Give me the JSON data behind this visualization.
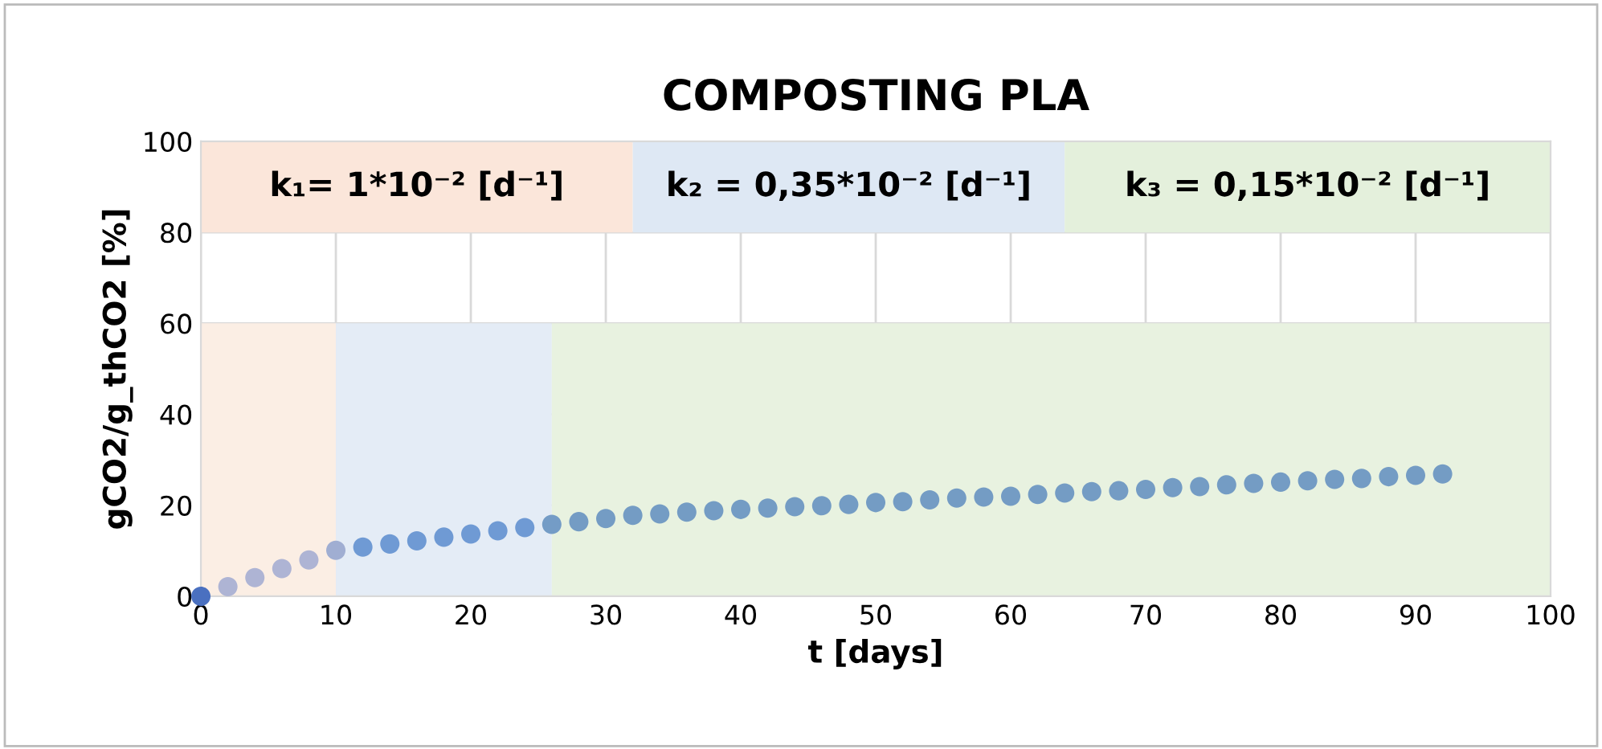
{
  "chart_data": {
    "type": "scatter",
    "title": "COMPOSTING PLA",
    "xlabel": "t [days]",
    "ylabel": "gCO2/g_thCO2 [%]",
    "x": [
      0,
      2,
      4,
      6,
      8,
      10,
      12,
      14,
      16,
      18,
      20,
      22,
      24,
      26,
      28,
      30,
      32,
      34,
      36,
      38,
      40,
      42,
      44,
      46,
      48,
      50,
      52,
      54,
      56,
      58,
      60,
      62,
      64,
      66,
      68,
      70,
      72,
      74,
      76,
      78,
      80,
      82,
      84,
      86,
      88,
      90,
      92
    ],
    "values": [
      0,
      2.1,
      4.1,
      6.1,
      8.0,
      10.1,
      10.8,
      11.5,
      12.2,
      13.0,
      13.7,
      14.4,
      15.1,
      15.8,
      16.4,
      17.1,
      17.8,
      18.1,
      18.5,
      18.8,
      19.1,
      19.4,
      19.7,
      19.9,
      20.2,
      20.6,
      20.8,
      21.2,
      21.6,
      21.8,
      22.0,
      22.4,
      22.7,
      23.0,
      23.2,
      23.5,
      23.9,
      24.1,
      24.5,
      24.8,
      25.1,
      25.4,
      25.7,
      25.9,
      26.3,
      26.6,
      26.9
    ],
    "colors": [
      "#4a70c0",
      "#aeb4d4",
      "#aeb4d4",
      "#aeb4d4",
      "#aeb4d4",
      "#a0aed2",
      "#6f9ad4",
      "#6f9ad4",
      "#6f9ad4",
      "#6f9ad4",
      "#6f9ad4",
      "#6f9ad4",
      "#6f9ad4",
      "#749cc6",
      "#749cc4",
      "#749cc4",
      "#749cc4",
      "#749cc4",
      "#749cc4",
      "#749cc4",
      "#749cc4",
      "#749cc4",
      "#749cc4",
      "#749cc4",
      "#749cc4",
      "#749cc4",
      "#749cc4",
      "#749cc4",
      "#749cc4",
      "#749cc4",
      "#749cc4",
      "#749cc4",
      "#749cc4",
      "#749cc4",
      "#749cc4",
      "#749cc4",
      "#749cc4",
      "#749cc4",
      "#749cc4",
      "#749cc4",
      "#749cc4",
      "#749cc4",
      "#749cc4",
      "#749cc4",
      "#749cc4",
      "#749cc4",
      "#749cc4"
    ],
    "marker": "circle",
    "xlim": [
      0,
      100
    ],
    "xticks": [
      0,
      10,
      20,
      30,
      40,
      50,
      60,
      70,
      80,
      90,
      100
    ],
    "ylim": [
      0,
      100
    ],
    "yticks": [
      0,
      20,
      40,
      60,
      80,
      100
    ],
    "grid": true,
    "bands": [
      {
        "axis": "x",
        "from": 0,
        "to": 10,
        "color": "#fbeee4"
      },
      {
        "axis": "x",
        "from": 10,
        "to": 26,
        "color": "#e4ecf6"
      },
      {
        "axis": "x",
        "from": 26,
        "to": 100,
        "color": "#e8f2e0"
      },
      {
        "axis": "x",
        "from": 0,
        "to": 32,
        "label": "k₁= 1*10⁻² [d⁻¹]",
        "color": "#fbe6da"
      },
      {
        "axis": "x",
        "from": 32,
        "to": 64,
        "label": "k₂ = 0,35*10⁻² [d⁻¹]",
        "color": "#dee8f4"
      },
      {
        "axis": "x",
        "from": 64,
        "to": 100,
        "label": "k₃ = 0,15*10⁻² [d⁻¹]",
        "color": "#e4f0dc"
      }
    ]
  }
}
